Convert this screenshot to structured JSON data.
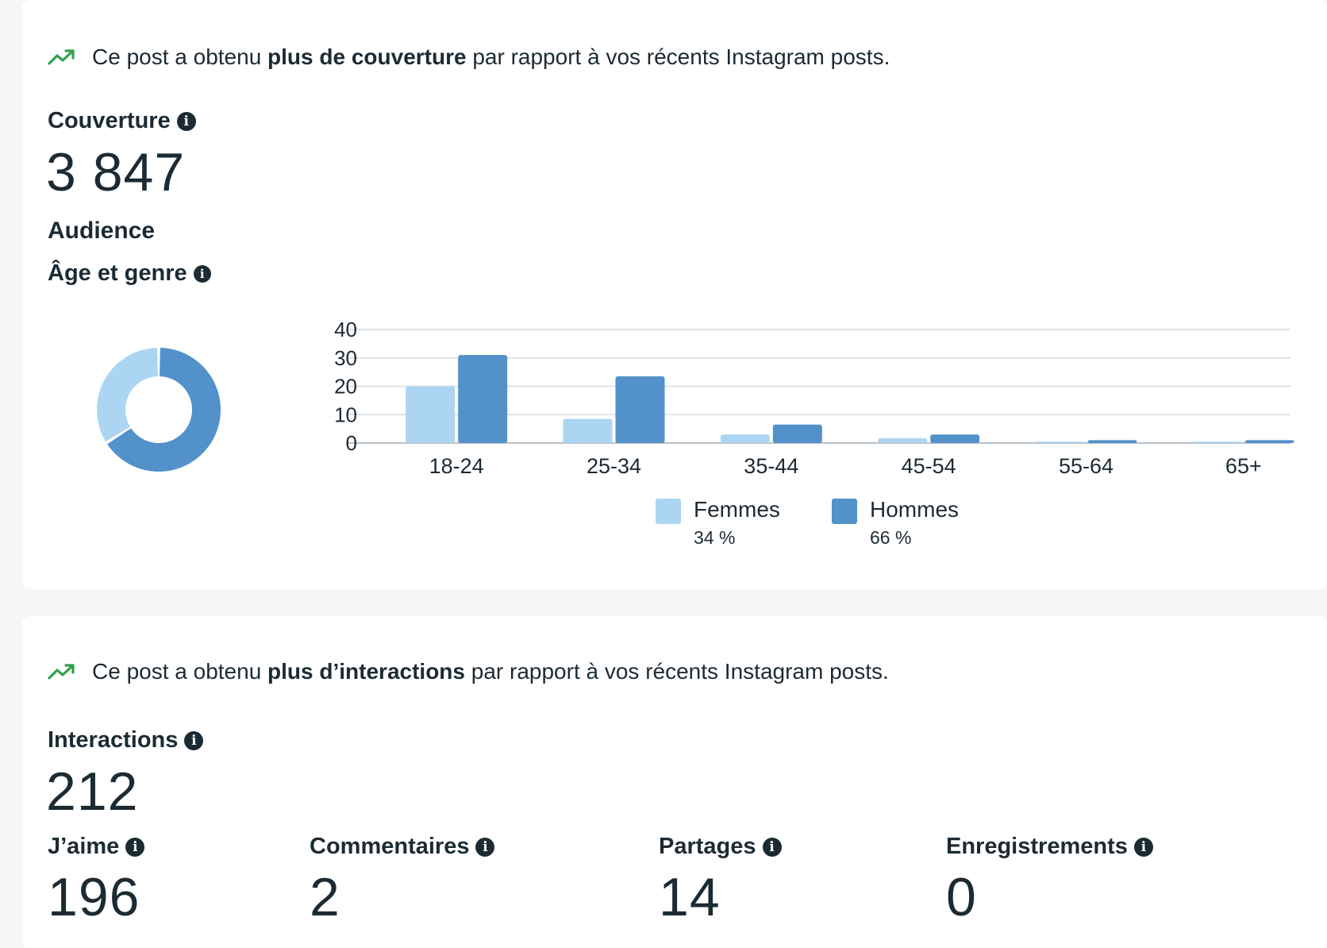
{
  "reach_card": {
    "insight_prefix": "Ce post a obtenu ",
    "insight_bold": "plus de couverture",
    "insight_suffix": " par rapport à vos récents Instagram posts.",
    "metric_label": "Couverture",
    "metric_value": "3 847",
    "audience_heading": "Audience",
    "age_gender_heading": "Âge et genre"
  },
  "legend": [
    {
      "name": "Femmes",
      "percent": "34 %"
    },
    {
      "name": "Hommes",
      "percent": "66 %"
    }
  ],
  "chart_data": [
    {
      "type": "pie",
      "variant": "donut",
      "labels": [
        "Femmes",
        "Hommes"
      ],
      "values": [
        34,
        66
      ],
      "colors": [
        "#acd5f3",
        "#5291ca"
      ]
    },
    {
      "type": "bar",
      "categories": [
        "18-24",
        "25-34",
        "35-44",
        "45-54",
        "55-64",
        "65+"
      ],
      "series": [
        {
          "name": "Femmes",
          "values": [
            20,
            8.5,
            3,
            1.7,
            0.5,
            0.5
          ],
          "color": "#acd5f3"
        },
        {
          "name": "Hommes",
          "values": [
            31,
            23.5,
            6.5,
            3,
            1,
            1
          ],
          "color": "#5291ca"
        }
      ],
      "ylim": [
        0,
        40
      ],
      "yticks": [
        0,
        10,
        20,
        30,
        40
      ],
      "grid": true,
      "legend_position": "bottom"
    }
  ],
  "interactions_card": {
    "insight_prefix": "Ce post a obtenu ",
    "insight_bold": "plus d’interactions",
    "insight_suffix": " par rapport à vos récents Instagram posts.",
    "metric_label": "Interactions",
    "metric_value": "212",
    "stats": [
      {
        "label": "J’aime",
        "value": "196"
      },
      {
        "label": "Commentaires",
        "value": "2"
      },
      {
        "label": "Partages",
        "value": "14"
      },
      {
        "label": "Enregistrements",
        "value": "0"
      }
    ]
  },
  "icons": {
    "trend": "trending-up-icon",
    "info": "info-icon"
  },
  "colors": {
    "trend": "#31a24c",
    "text": "#1c2b33",
    "femmes": "#acd5f3",
    "hommes": "#5291ca"
  }
}
